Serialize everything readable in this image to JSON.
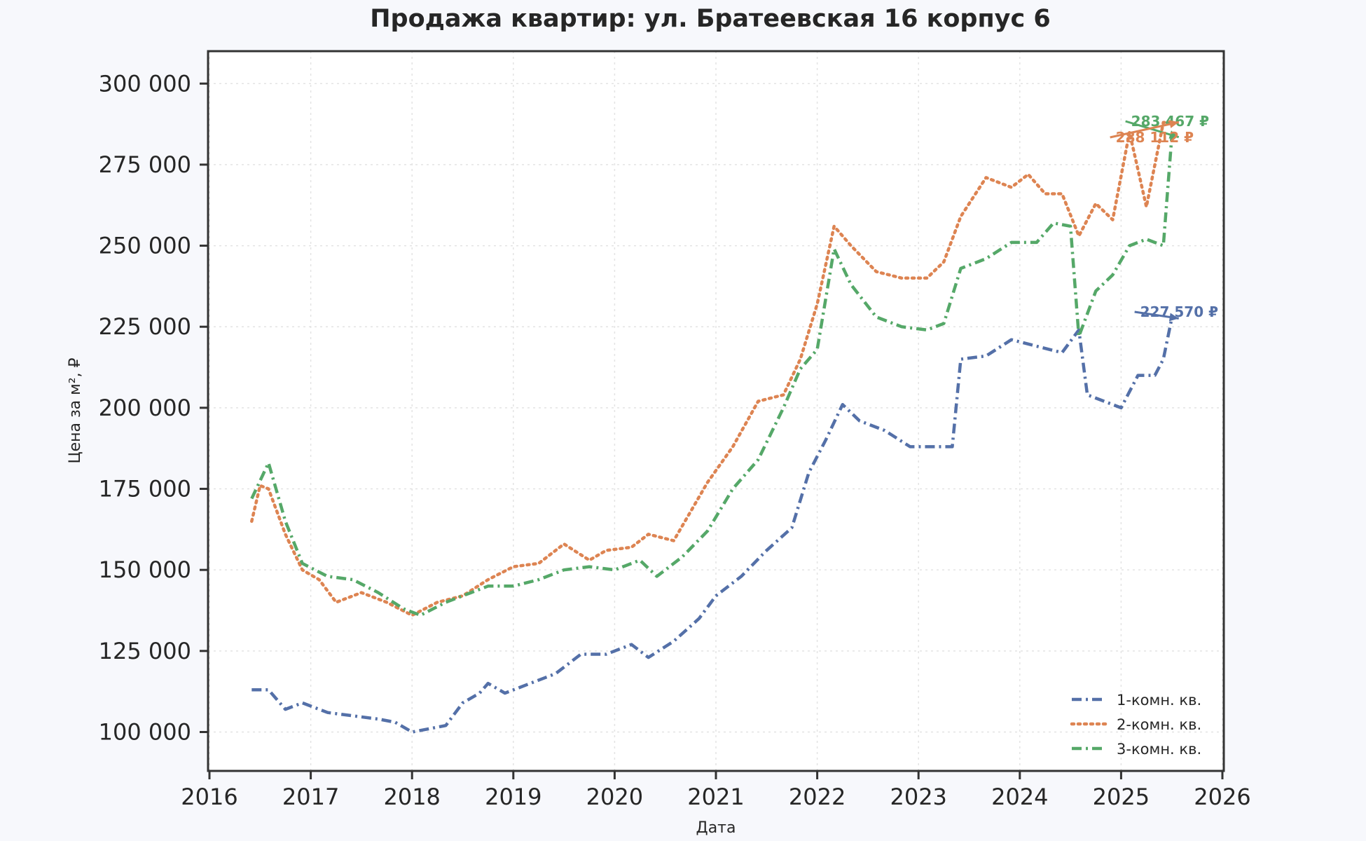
{
  "chart_data": {
    "type": "line",
    "title": "Продажа квартир: ул. Братеевская 16 корпус 6",
    "xlabel": "Дата",
    "ylabel": "Цена за м², ₽",
    "xlim": [
      2016,
      2026
    ],
    "ylim": [
      88000,
      310000
    ],
    "x_ticks": [
      "2016",
      "2017",
      "2018",
      "2019",
      "2020",
      "2021",
      "2022",
      "2023",
      "2024",
      "2025",
      "2026"
    ],
    "y_ticks": [
      {
        "value": 100000,
        "label": "100 000"
      },
      {
        "value": 125000,
        "label": "125 000"
      },
      {
        "value": 150000,
        "label": "150 000"
      },
      {
        "value": 175000,
        "label": "175 000"
      },
      {
        "value": 200000,
        "label": "200 000"
      },
      {
        "value": 225000,
        "label": "225 000"
      },
      {
        "value": 250000,
        "label": "250 000"
      },
      {
        "value": 275000,
        "label": "275 000"
      },
      {
        "value": 300000,
        "label": "300 000"
      }
    ],
    "grid": true,
    "legend": "bottom-right",
    "series": [
      {
        "name": "1-комн. кв.",
        "color": "#5470a8",
        "line_style": "dash-dot",
        "x": [
          "2016-06",
          "2016-08",
          "2016-10",
          "2016-12",
          "2017-03",
          "2017-06",
          "2017-09",
          "2017-11",
          "2018-01",
          "2018-03",
          "2018-05",
          "2018-07",
          "2018-09",
          "2018-10",
          "2018-12",
          "2019-03",
          "2019-06",
          "2019-09",
          "2019-12",
          "2020-03",
          "2020-05",
          "2020-08",
          "2020-11",
          "2021-01",
          "2021-04",
          "2021-07",
          "2021-10",
          "2021-12",
          "2022-02",
          "2022-04",
          "2022-06",
          "2022-09",
          "2022-12",
          "2023-03",
          "2023-05",
          "2023-06",
          "2023-09",
          "2023-12",
          "2024-03",
          "2024-06",
          "2024-08",
          "2024-09",
          "2024-11",
          "2025-01",
          "2025-03",
          "2025-05",
          "2025-06",
          "2025-07"
        ],
        "values": [
          113000,
          113000,
          107000,
          109000,
          106000,
          105000,
          104000,
          103000,
          100000,
          101000,
          102000,
          109000,
          112000,
          115000,
          112000,
          115000,
          118000,
          124000,
          124000,
          127000,
          123000,
          128000,
          135000,
          142000,
          148000,
          156000,
          163000,
          180000,
          190000,
          201000,
          196000,
          193000,
          188000,
          188000,
          188000,
          215000,
          216000,
          221000,
          219000,
          217000,
          224000,
          204000,
          202000,
          200000,
          210000,
          210000,
          215000,
          227570
        ]
      },
      {
        "name": "2-комн. кв.",
        "color": "#dd8452",
        "line_style": "dotted",
        "x": [
          "2016-06",
          "2016-07",
          "2016-08",
          "2016-10",
          "2016-12",
          "2017-02",
          "2017-04",
          "2017-07",
          "2017-10",
          "2018-01",
          "2018-04",
          "2018-07",
          "2018-10",
          "2019-01",
          "2019-04",
          "2019-07",
          "2019-10",
          "2019-12",
          "2020-03",
          "2020-05",
          "2020-08",
          "2020-10",
          "2020-12",
          "2021-03",
          "2021-06",
          "2021-09",
          "2021-11",
          "2022-01",
          "2022-03",
          "2022-05",
          "2022-08",
          "2022-11",
          "2023-02",
          "2023-04",
          "2023-06",
          "2023-09",
          "2023-12",
          "2024-02",
          "2024-04",
          "2024-06",
          "2024-08",
          "2024-10",
          "2024-12",
          "2025-02",
          "2025-04",
          "2025-06",
          "2025-07"
        ],
        "values": [
          165000,
          176000,
          175000,
          161000,
          150000,
          147000,
          140000,
          143000,
          140000,
          136000,
          140000,
          142000,
          147000,
          151000,
          152000,
          158000,
          153000,
          156000,
          157000,
          161000,
          159000,
          168000,
          177000,
          188000,
          202000,
          204000,
          215000,
          232000,
          256000,
          250000,
          242000,
          240000,
          240000,
          245000,
          259000,
          271000,
          268000,
          272000,
          266000,
          266000,
          253000,
          263000,
          258000,
          285000,
          262000,
          288000,
          288112
        ]
      },
      {
        "name": "3-комн. кв.",
        "color": "#55a868",
        "line_style": "dash-dot",
        "x": [
          "2016-06",
          "2016-08",
          "2016-10",
          "2016-12",
          "2017-03",
          "2017-06",
          "2017-09",
          "2017-12",
          "2018-02",
          "2018-05",
          "2018-08",
          "2018-10",
          "2019-01",
          "2019-04",
          "2019-07",
          "2019-10",
          "2020-01",
          "2020-04",
          "2020-06",
          "2020-09",
          "2020-12",
          "2021-03",
          "2021-06",
          "2021-09",
          "2021-11",
          "2022-01",
          "2022-03",
          "2022-05",
          "2022-08",
          "2022-11",
          "2023-02",
          "2023-04",
          "2023-06",
          "2023-09",
          "2023-12",
          "2024-03",
          "2024-05",
          "2024-07",
          "2024-08",
          "2024-10",
          "2024-12",
          "2025-02",
          "2025-04",
          "2025-06",
          "2025-07"
        ],
        "values": [
          172000,
          183000,
          165000,
          152000,
          148000,
          147000,
          143000,
          138000,
          136000,
          140000,
          143000,
          145000,
          145000,
          147000,
          150000,
          151000,
          150000,
          153000,
          148000,
          154000,
          162000,
          175000,
          184000,
          200000,
          212000,
          218000,
          249000,
          238000,
          228000,
          225000,
          224000,
          226000,
          243000,
          246000,
          251000,
          251000,
          257000,
          256000,
          222000,
          236000,
          241000,
          250000,
          252000,
          250000,
          283467
        ]
      }
    ],
    "annotations": [
      {
        "text": "283 467 ₽",
        "series": "3-комн. кв.",
        "color": "#55a868"
      },
      {
        "text": "288 112 ₽",
        "series": "2-комн. кв.",
        "color": "#dd8452"
      },
      {
        "text": "227 570 ₽",
        "series": "1-комн. кв.",
        "color": "#5470a8"
      }
    ]
  }
}
